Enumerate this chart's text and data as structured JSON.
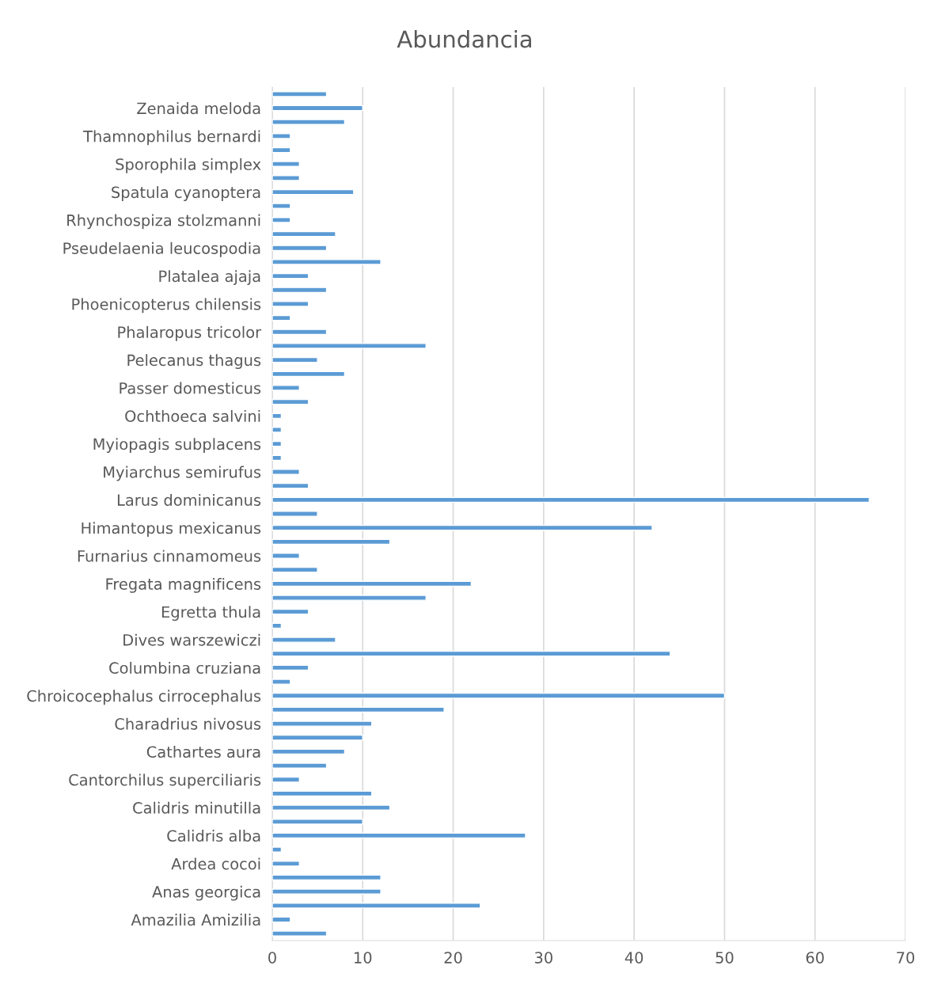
{
  "chart_data": {
    "type": "bar",
    "orientation": "horizontal",
    "title": "Abundancia",
    "categories": [
      null,
      "Zenaida meloda",
      null,
      "Thamnophilus bernardi",
      null,
      "Sporophila simplex",
      null,
      "Spatula cyanoptera",
      null,
      "Rhynchospiza stolzmanni",
      null,
      "Pseudelaenia leucospodia",
      null,
      "Platalea ajaja",
      null,
      "Phoenicopterus chilensis",
      null,
      "Phalaropus tricolor",
      null,
      "Pelecanus thagus",
      null,
      "Passer domesticus",
      null,
      "Ochthoeca salvini",
      null,
      "Myiopagis subplacens",
      null,
      "Myiarchus semirufus",
      null,
      "Larus dominicanus",
      null,
      "Himantopus mexicanus",
      null,
      "Furnarius cinnamomeus",
      null,
      "Fregata magnificens",
      null,
      "Egretta thula",
      null,
      "Dives warszewiczi",
      null,
      "Columbina cruziana",
      null,
      "Chroicocephalus cirrocephalus",
      null,
      "Charadrius nivosus",
      null,
      "Cathartes aura",
      null,
      "Cantorchilus superciliaris",
      null,
      "Calidris minutilla",
      null,
      "Calidris alba",
      null,
      "Ardea cocoi",
      null,
      "Anas georgica",
      null,
      "Amazilia Amizilia",
      null
    ],
    "values": [
      6,
      10,
      8,
      2,
      2,
      3,
      3,
      9,
      2,
      2,
      7,
      6,
      12,
      4,
      6,
      4,
      2,
      6,
      17,
      5,
      8,
      3,
      4,
      1,
      1,
      1,
      1,
      3,
      4,
      66,
      5,
      42,
      13,
      3,
      5,
      22,
      17,
      4,
      1,
      7,
      44,
      4,
      2,
      50,
      19,
      11,
      10,
      8,
      6,
      3,
      11,
      13,
      10,
      28,
      1,
      3,
      12,
      12,
      23,
      2,
      6
    ],
    "color": "#5b9bd5",
    "xlim": [
      0,
      70
    ],
    "xticks": [
      0,
      10,
      20,
      30,
      40,
      50,
      60,
      70
    ],
    "grid": "x"
  }
}
